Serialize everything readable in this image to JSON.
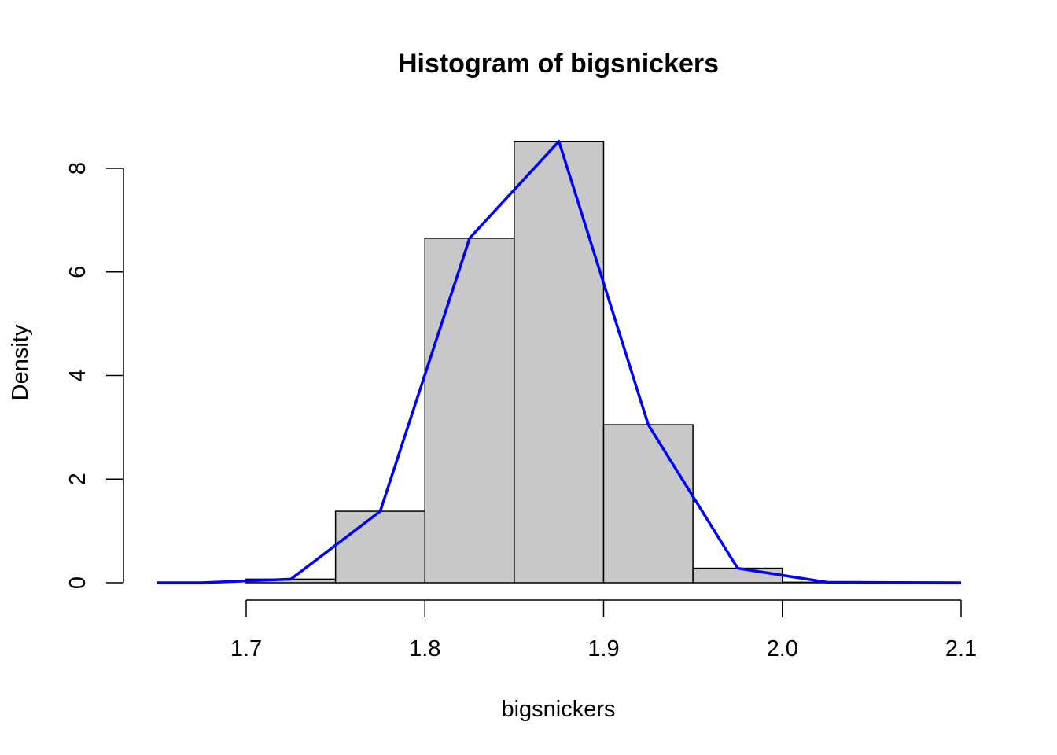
{
  "chart_data": {
    "type": "bar",
    "title": "Histogram of bigsnickers",
    "xlabel": "bigsnickers",
    "ylabel": "Density",
    "xlim": [
      1.65,
      2.1
    ],
    "ylim": [
      0,
      8.5
    ],
    "x_ticks": [
      1.7,
      1.8,
      1.9,
      2.0,
      2.1
    ],
    "x_tick_labels": [
      "1.7",
      "1.8",
      "1.9",
      "2.0",
      "2.1"
    ],
    "y_ticks": [
      0,
      2,
      4,
      6,
      8
    ],
    "y_tick_labels": [
      "0",
      "2",
      "4",
      "6",
      "8"
    ],
    "grid": false,
    "bar_fill": "#c8c8c8",
    "bar_stroke": "#000000",
    "bins": [
      {
        "start": 1.7,
        "end": 1.75,
        "density": 0.07
      },
      {
        "start": 1.75,
        "end": 1.8,
        "density": 1.38
      },
      {
        "start": 1.8,
        "end": 1.85,
        "density": 6.65
      },
      {
        "start": 1.85,
        "end": 1.9,
        "density": 8.52
      },
      {
        "start": 1.9,
        "end": 1.95,
        "density": 3.05
      },
      {
        "start": 1.95,
        "end": 2.0,
        "density": 0.28
      },
      {
        "start": 2.0,
        "end": 2.05,
        "density": 0.01
      }
    ],
    "series": [
      {
        "type": "line",
        "color": "#0000ff",
        "x": [
          1.65,
          1.675,
          1.725,
          1.775,
          1.825,
          1.875,
          1.925,
          1.975,
          2.025,
          2.1
        ],
        "y": [
          0,
          0,
          0.07,
          1.38,
          6.65,
          8.52,
          3.05,
          0.28,
          0.01,
          0
        ]
      }
    ]
  }
}
